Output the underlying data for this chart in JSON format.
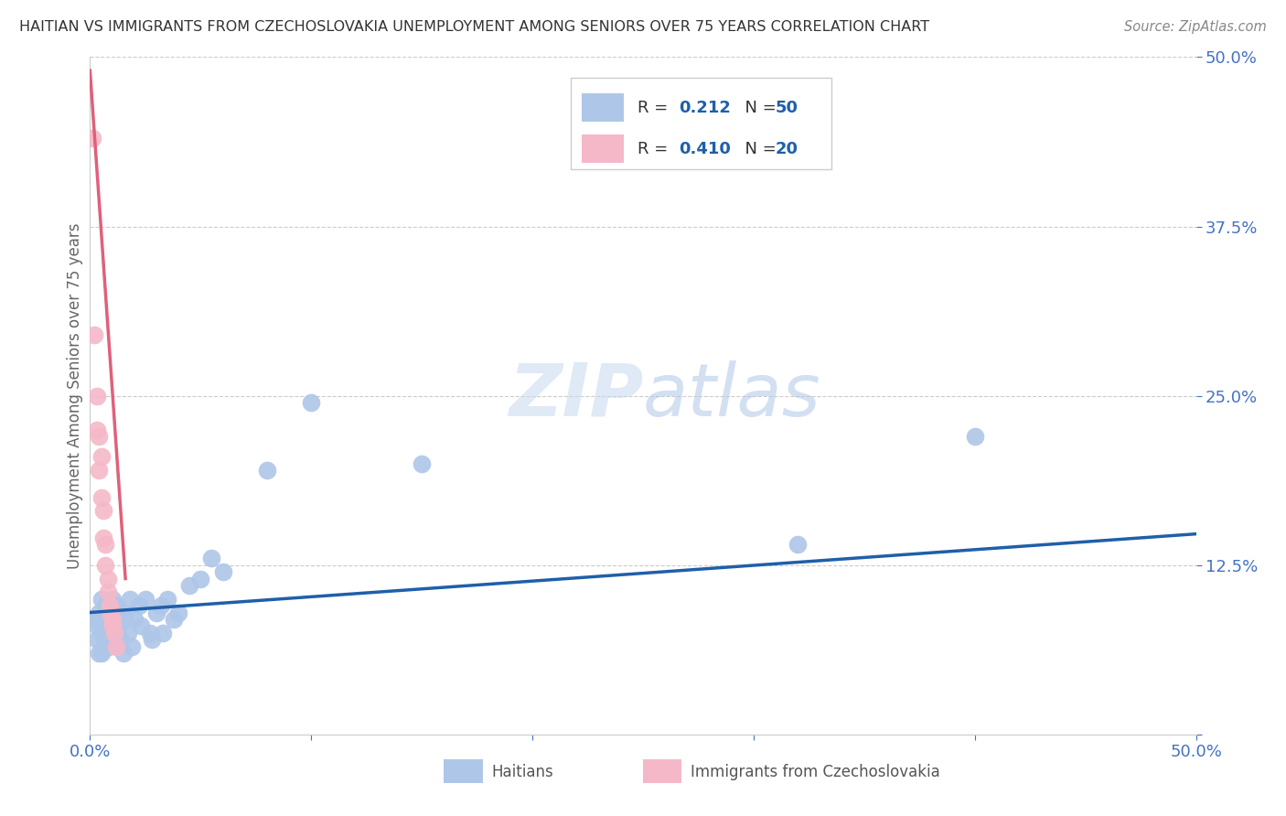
{
  "title": "HAITIAN VS IMMIGRANTS FROM CZECHOSLOVAKIA UNEMPLOYMENT AMONG SENIORS OVER 75 YEARS CORRELATION CHART",
  "source": "Source: ZipAtlas.com",
  "ylabel": "Unemployment Among Seniors over 75 years",
  "legend_label1": "Haitians",
  "legend_label2": "Immigrants from Czechoslovakia",
  "R1": 0.212,
  "N1": 50,
  "R2": 0.41,
  "N2": 20,
  "blue_color": "#aec6e8",
  "pink_color": "#f5b8c8",
  "blue_line_color": "#1f5faa",
  "pink_line_color": "#e0607a",
  "axis_label_color": "#4472c4",
  "title_color": "#333333",
  "source_color": "#888888",
  "ylabel_color": "#666666",
  "watermark_color": "#dde8f5",
  "xmin": 0.0,
  "xmax": 0.5,
  "ymin": 0.0,
  "ymax": 0.5,
  "yticks": [
    0.0,
    0.125,
    0.25,
    0.375,
    0.5
  ],
  "ytick_labels": [
    "",
    "12.5%",
    "25.0%",
    "37.5%",
    "50.0%"
  ],
  "blue_scatter_x": [
    0.002,
    0.003,
    0.003,
    0.004,
    0.004,
    0.005,
    0.005,
    0.005,
    0.006,
    0.006,
    0.007,
    0.007,
    0.008,
    0.008,
    0.009,
    0.009,
    0.01,
    0.01,
    0.011,
    0.012,
    0.012,
    0.013,
    0.014,
    0.015,
    0.015,
    0.016,
    0.017,
    0.018,
    0.019,
    0.02,
    0.022,
    0.023,
    0.025,
    0.027,
    0.028,
    0.03,
    0.032,
    0.033,
    0.035,
    0.038,
    0.04,
    0.045,
    0.05,
    0.055,
    0.06,
    0.08,
    0.1,
    0.15,
    0.32,
    0.4
  ],
  "blue_scatter_y": [
    0.085,
    0.08,
    0.07,
    0.09,
    0.06,
    0.1,
    0.075,
    0.06,
    0.085,
    0.065,
    0.095,
    0.08,
    0.075,
    0.065,
    0.095,
    0.085,
    0.1,
    0.07,
    0.08,
    0.095,
    0.075,
    0.08,
    0.07,
    0.09,
    0.06,
    0.085,
    0.075,
    0.1,
    0.065,
    0.085,
    0.095,
    0.08,
    0.1,
    0.075,
    0.07,
    0.09,
    0.095,
    0.075,
    0.1,
    0.085,
    0.09,
    0.11,
    0.115,
    0.13,
    0.12,
    0.195,
    0.245,
    0.2,
    0.14,
    0.22
  ],
  "pink_scatter_x": [
    0.001,
    0.002,
    0.003,
    0.003,
    0.004,
    0.004,
    0.005,
    0.005,
    0.006,
    0.006,
    0.007,
    0.007,
    0.008,
    0.008,
    0.009,
    0.009,
    0.01,
    0.01,
    0.011,
    0.012
  ],
  "pink_scatter_y": [
    0.44,
    0.295,
    0.25,
    0.225,
    0.22,
    0.195,
    0.205,
    0.175,
    0.165,
    0.145,
    0.14,
    0.125,
    0.115,
    0.105,
    0.095,
    0.09,
    0.085,
    0.08,
    0.075,
    0.065
  ],
  "blue_line_x": [
    0.0,
    0.5
  ],
  "blue_line_y_start": 0.09,
  "blue_line_y_end": 0.148,
  "pink_line_x_start": 0.0,
  "pink_line_x_end": 0.016,
  "pink_line_y_start": 0.49,
  "pink_line_y_end": 0.115
}
